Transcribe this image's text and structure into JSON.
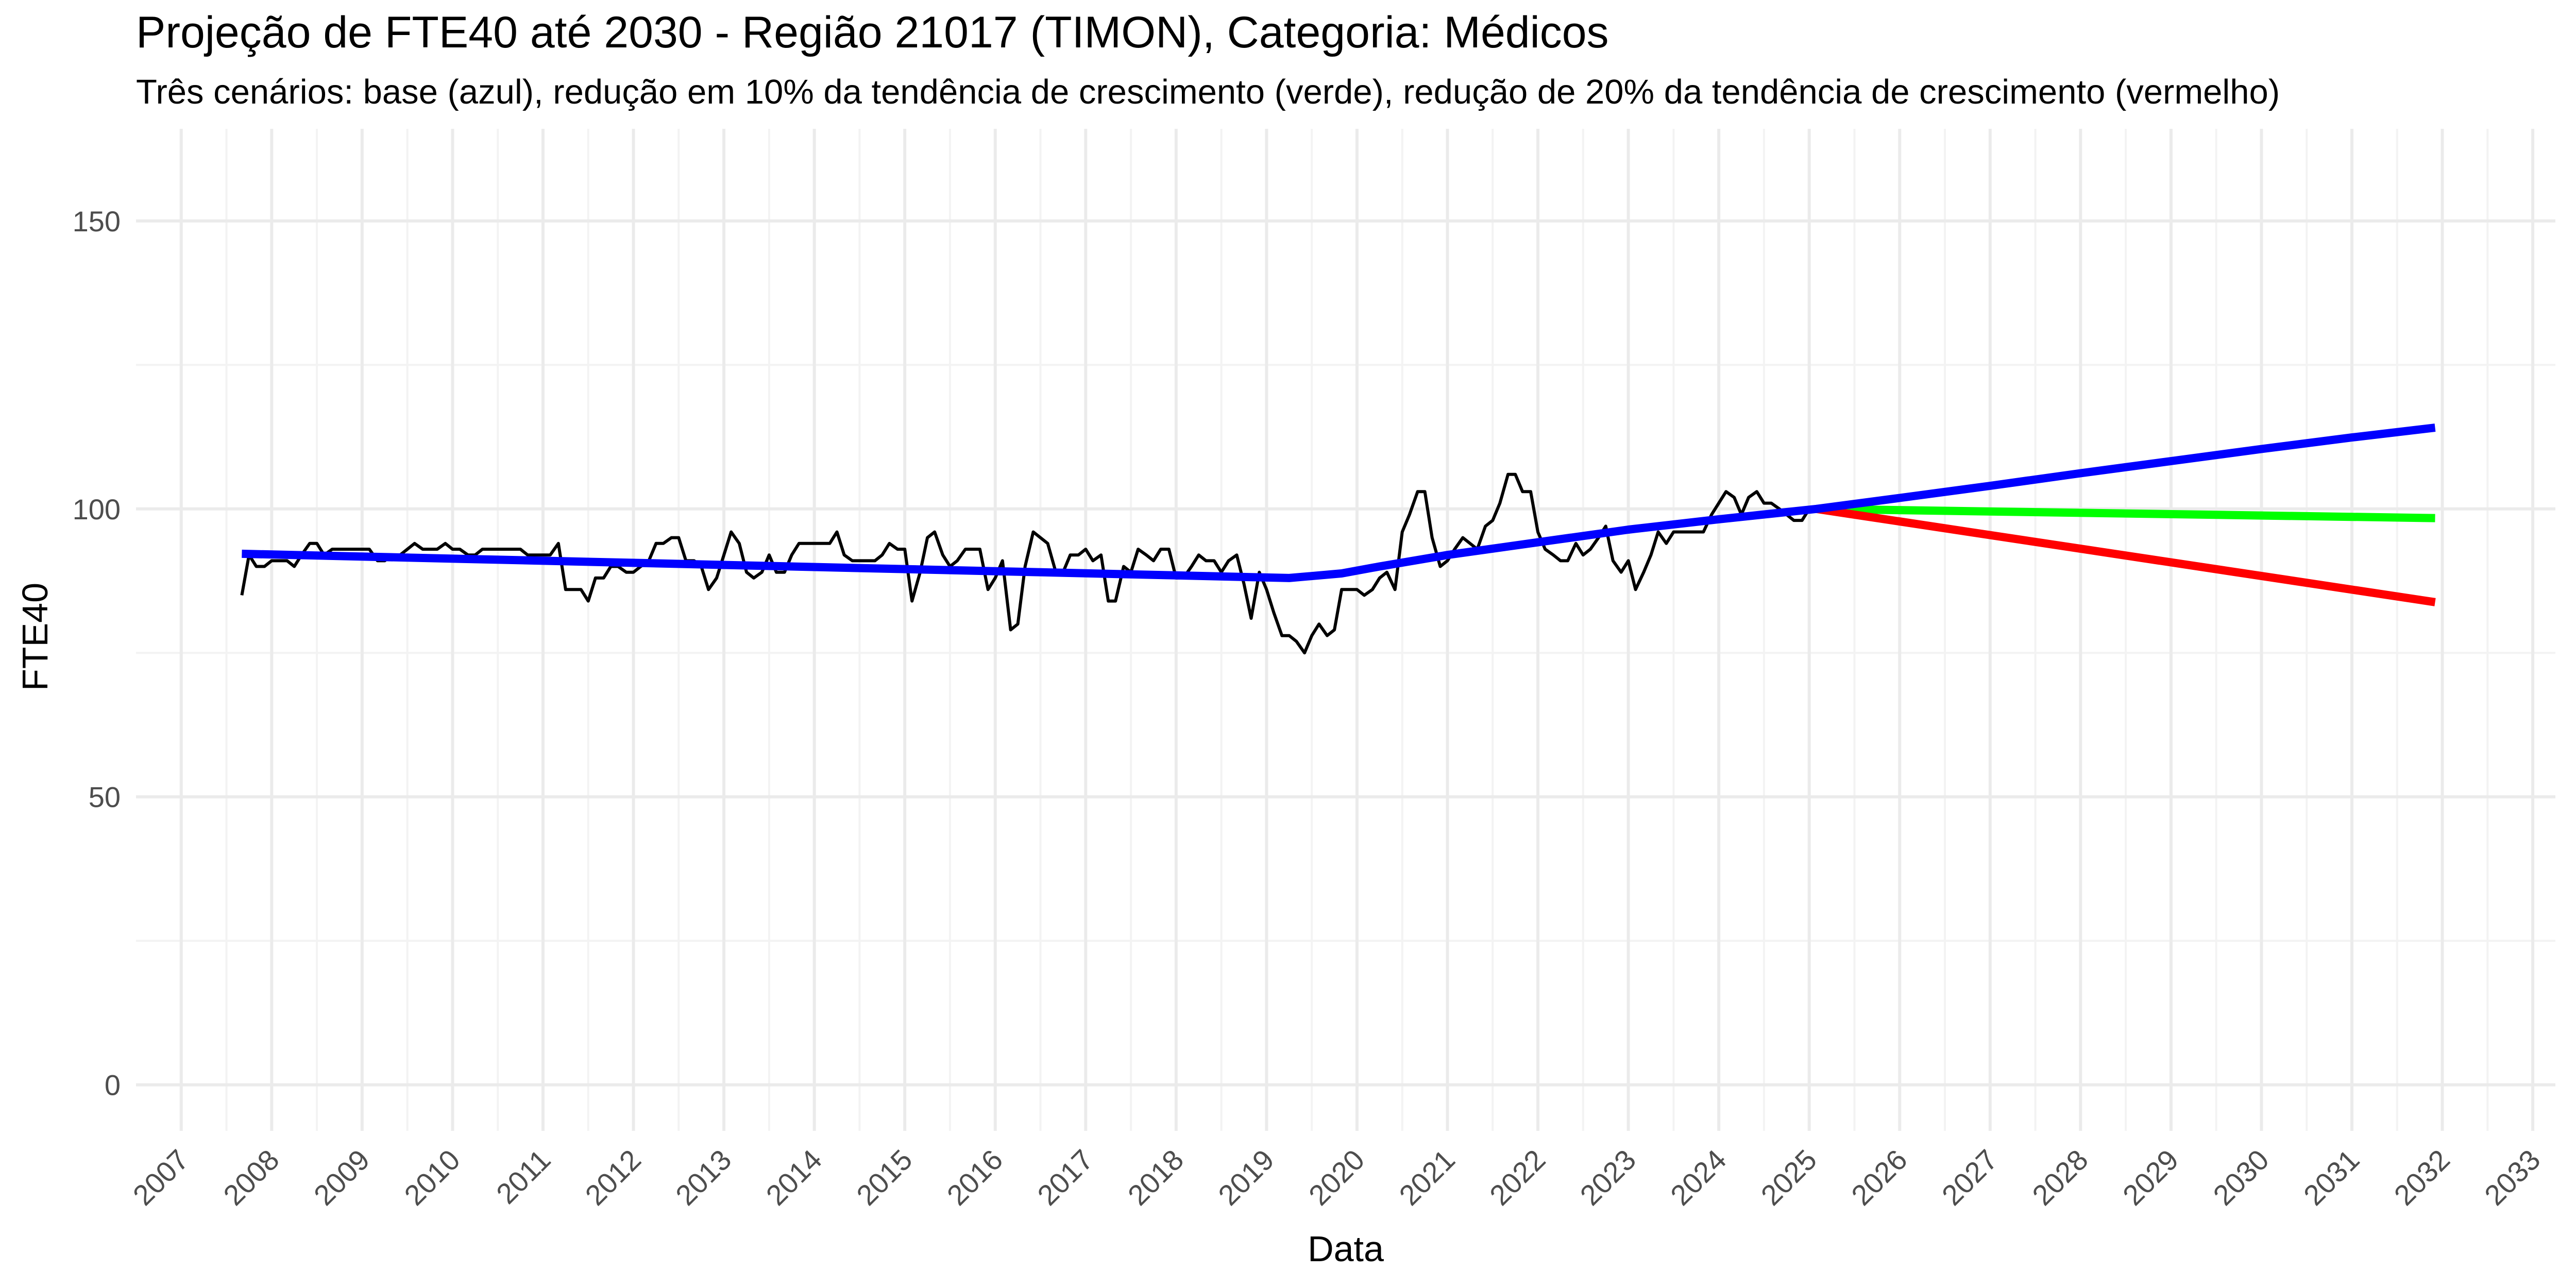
{
  "chart_data": {
    "type": "line",
    "title": "Projeção de FTE40 até 2030 - Região 21017 (TIMON), Categoria: Médicos",
    "subtitle": "Três cenários: base (azul), redução em 10% da tendência de crescimento (verde), redução de 20% da tendência de crescimento (vermelho)",
    "xlabel": "Data",
    "ylabel": "FTE40",
    "ylim": [
      -8,
      166
    ],
    "y_ticks": [
      0,
      50,
      100,
      150
    ],
    "x_range": [
      2006.5,
      2033.25
    ],
    "x_ticks": [
      "2007",
      "2008",
      "2009",
      "2010",
      "2011",
      "2012",
      "2013",
      "2014",
      "2015",
      "2016",
      "2017",
      "2018",
      "2019",
      "2020",
      "2021",
      "2022",
      "2023",
      "2024",
      "2025",
      "2026",
      "2027",
      "2028",
      "2029",
      "2030",
      "2031",
      "2032",
      "2033"
    ],
    "grid": true,
    "legend": "none",
    "colors": {
      "observed": "#000000",
      "base": "#0000ff",
      "verde": "#00ff00",
      "vermelho": "#ff0000"
    },
    "series": [
      {
        "values_note": "",
        "x": [
          2007.67,
          2007.75,
          2007.83,
          2007.92,
          2008.0,
          2008.08,
          2008.17,
          2008.25,
          2008.33,
          2008.42,
          2008.5,
          2008.58,
          2008.67,
          2008.75,
          2008.83,
          2008.92,
          2009.0,
          2009.08,
          2009.17,
          2009.25,
          2009.33,
          2009.42,
          2009.5,
          2009.58,
          2009.67,
          2009.75,
          2009.83,
          2009.92,
          2010.0,
          2010.08,
          2010.17,
          2010.25,
          2010.33,
          2010.42,
          2010.5,
          2010.58,
          2010.67,
          2010.75,
          2010.83,
          2010.92,
          2011.0,
          2011.08,
          2011.17,
          2011.25,
          2011.33,
          2011.42,
          2011.5,
          2011.58,
          2011.67,
          2011.75,
          2011.83,
          2011.92,
          2012.0,
          2012.08,
          2012.17,
          2012.25,
          2012.33,
          2012.42,
          2012.5,
          2012.58,
          2012.67,
          2012.75,
          2012.83,
          2012.92,
          2013.0,
          2013.08,
          2013.17,
          2013.25,
          2013.33,
          2013.42,
          2013.5,
          2013.58,
          2013.67,
          2013.75,
          2013.83,
          2013.92,
          2014.0,
          2014.08,
          2014.17,
          2014.25,
          2014.33,
          2014.42,
          2014.5,
          2014.58,
          2014.67,
          2014.75,
          2014.83,
          2014.92,
          2015.0,
          2015.08,
          2015.17,
          2015.25,
          2015.33,
          2015.42,
          2015.5,
          2015.58,
          2015.67,
          2015.75,
          2015.83,
          2015.92,
          2016.0,
          2016.08,
          2016.17,
          2016.25,
          2016.33,
          2016.42,
          2016.5,
          2016.58,
          2016.67,
          2016.75,
          2016.83,
          2016.92,
          2017.0,
          2017.08,
          2017.17,
          2017.25,
          2017.33,
          2017.42,
          2017.5,
          2017.58,
          2017.67,
          2017.75,
          2017.83,
          2017.92,
          2018.0,
          2018.08,
          2018.17,
          2018.25,
          2018.33,
          2018.42,
          2018.5,
          2018.58,
          2018.67,
          2018.75,
          2018.83,
          2018.92,
          2019.0,
          2019.08,
          2019.17,
          2019.25,
          2019.33,
          2019.42,
          2019.5,
          2019.58,
          2019.67,
          2019.75,
          2019.83,
          2019.92,
          2020.0,
          2020.08,
          2020.17,
          2020.25,
          2020.33,
          2020.42,
          2020.5,
          2020.58,
          2020.67,
          2020.75,
          2020.83,
          2020.92,
          2021.0,
          2021.08,
          2021.17,
          2021.25,
          2021.33,
          2021.42,
          2021.5,
          2021.58,
          2021.67,
          2021.75,
          2021.83,
          2021.92,
          2022.0,
          2022.08,
          2022.17,
          2022.25,
          2022.33,
          2022.42,
          2022.5,
          2022.58,
          2022.67,
          2022.75,
          2022.83,
          2022.92,
          2023.0,
          2023.08,
          2023.17,
          2023.25,
          2023.33,
          2023.42,
          2023.5,
          2023.58,
          2023.67,
          2023.75,
          2023.83,
          2023.92,
          2024.0,
          2024.08,
          2024.17,
          2024.25,
          2024.33,
          2024.42,
          2024.5,
          2024.58,
          2024.67,
          2024.75,
          2024.83,
          2024.92,
          2025.0
        ],
        "values": [
          85,
          92,
          90,
          90,
          91,
          91,
          91,
          90,
          92,
          94,
          94,
          92,
          93,
          93,
          93,
          93,
          93,
          93,
          91,
          91,
          92,
          92,
          93,
          94,
          93,
          93,
          93,
          94,
          93,
          93,
          92,
          92,
          93,
          93,
          93,
          93,
          93,
          93,
          92,
          92,
          92,
          92,
          94,
          86,
          86,
          86,
          84,
          88,
          88,
          90,
          90,
          89,
          89,
          90,
          91,
          94,
          94,
          95,
          95,
          91,
          91,
          90,
          86,
          88,
          92,
          96,
          94,
          89,
          88,
          89,
          92,
          89,
          89,
          92,
          94,
          94,
          94,
          94,
          94,
          96,
          92,
          91,
          91,
          91,
          91,
          92,
          94,
          93,
          93,
          84,
          89,
          95,
          96,
          92,
          90,
          91,
          93,
          93,
          93,
          86,
          88,
          91,
          79,
          80,
          90,
          96,
          95,
          94,
          89,
          89,
          92,
          92,
          93,
          91,
          92,
          84,
          84,
          90,
          89,
          93,
          92,
          91,
          93,
          93,
          88,
          88,
          90,
          92,
          91,
          91,
          89,
          91,
          92,
          87,
          81,
          89,
          86,
          82,
          78,
          78,
          77,
          75,
          78,
          80,
          78,
          79,
          86,
          86,
          86,
          85,
          86,
          88,
          89,
          86,
          96,
          99,
          103,
          103,
          95,
          90,
          91,
          93,
          95,
          94,
          93,
          97,
          98,
          101,
          106,
          106,
          103,
          103,
          96,
          93,
          92,
          91,
          91,
          94,
          92,
          93,
          95,
          97,
          91,
          89,
          91,
          86,
          89,
          92,
          96,
          94,
          96,
          96,
          96,
          96,
          96,
          99,
          101,
          103,
          102,
          99,
          102,
          103,
          101,
          101,
          100,
          99,
          98,
          98,
          100
        ]
      },
      {
        "name": "",
        "x": [
          2007.67,
          2019.25,
          2019.83,
          2020.25,
          2021.0,
          2022.0,
          2023.0,
          2024.0,
          2025.08,
          2026.0,
          2027.0,
          2028.0,
          2029.0,
          2030.0,
          2031.0,
          2031.92
        ],
        "values": [
          92.2,
          88.0,
          88.8,
          90.0,
          92.0,
          94.2,
          96.4,
          98.2,
          100.0,
          101.9,
          104.0,
          106.2,
          108.3,
          110.4,
          112.4,
          114.1
        ]
      },
      {
        "name": "",
        "x": [
          2025.08,
          2031.92
        ],
        "values": [
          100.0,
          98.4
        ]
      },
      {
        "name": "",
        "x": [
          2025.08,
          2031.92
        ],
        "values": [
          100.0,
          83.8
        ]
      }
    ]
  }
}
